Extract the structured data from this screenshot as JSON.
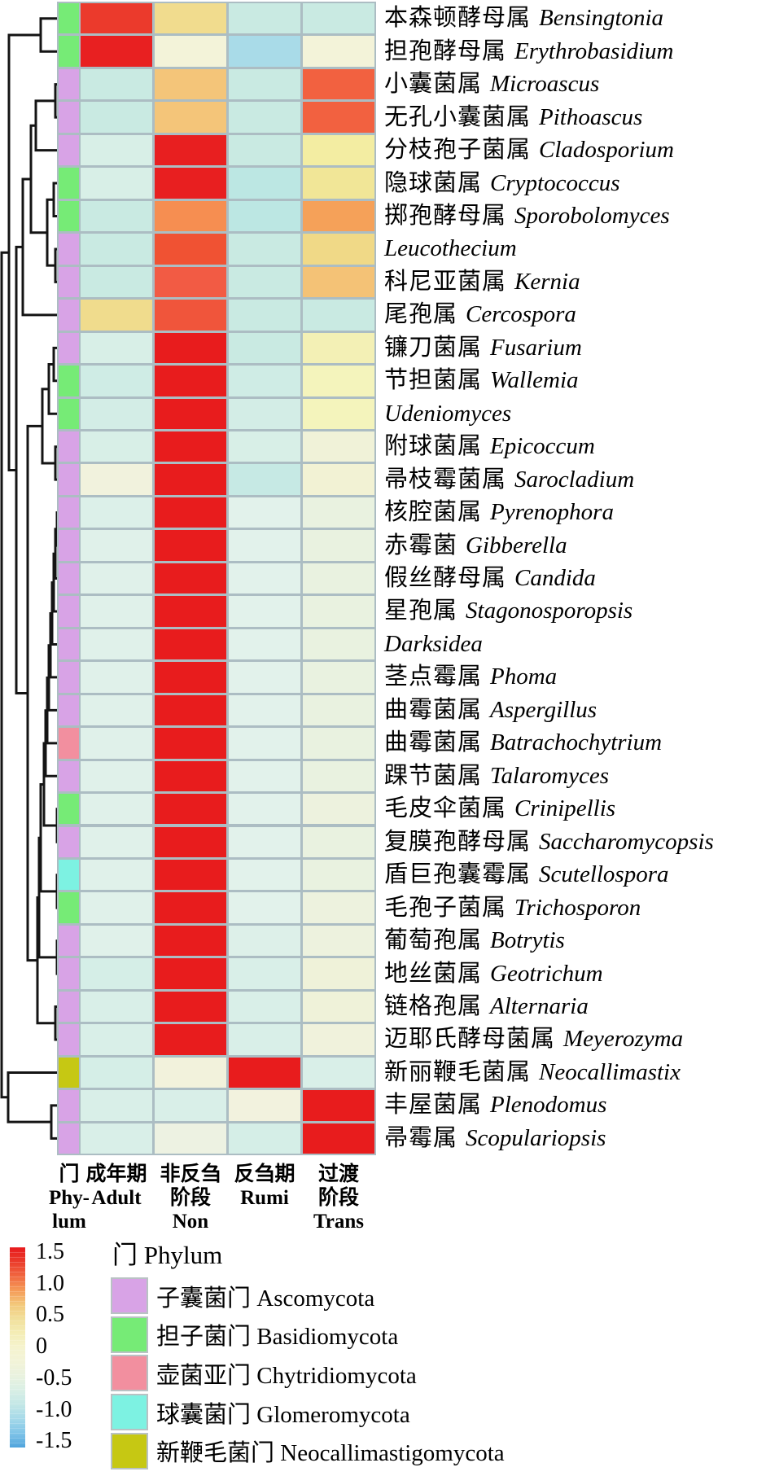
{
  "figure_type": "clustered-heatmap",
  "grid_color": "#ACBDC3",
  "branch_color": "#141414",
  "legend": {
    "title": "门 Phylum",
    "items": [
      "asco",
      "basidio",
      "chytridio",
      "glomero",
      "neocalli"
    ]
  },
  "chart_data": {
    "type": "heatmap",
    "title": "",
    "value_scale": "row z-score",
    "columns": [
      {
        "id": "adult",
        "label_lines": [
          "成年期",
          "Adult"
        ]
      },
      {
        "id": "non",
        "label_lines": [
          "非反刍",
          "阶段",
          "Non"
        ]
      },
      {
        "id": "rumi",
        "label_lines": [
          "反刍期",
          "Rumi"
        ]
      },
      {
        "id": "trans",
        "label_lines": [
          "过渡",
          "阶段",
          "Trans"
        ]
      }
    ],
    "phylum_column": {
      "label_lines": [
        "门",
        "Phy-",
        "lum"
      ]
    },
    "colorbar": {
      "ticks": [
        "1.5",
        "1.0",
        "0.5",
        "0",
        "-0.5",
        "-1.0",
        "-1.5"
      ],
      "range": [
        -1.5,
        1.5
      ],
      "stops": [
        "#E8191C",
        "#EA3B2B",
        "#F0663F",
        "#F59A57",
        "#F3C87B",
        "#F1DF9A",
        "#F4EDB6",
        "#F5F3CE",
        "#F2F3D8",
        "#E9F2DF",
        "#D9EFE5",
        "#C3E7E6",
        "#A5D9E9",
        "#7FC4E8",
        "#4FA3DC"
      ]
    },
    "phyla": {
      "asco": {
        "cn": "子囊菌门",
        "latin": "Ascomycota",
        "color": "#D8A3E6"
      },
      "basidio": {
        "cn": "担子菌门",
        "latin": "Basidiomycota",
        "color": "#76EB76"
      },
      "chytridio": {
        "cn": "壶菌亚门",
        "latin": "Chytridiomycota",
        "color": "#F28F9F"
      },
      "glomero": {
        "cn": "球囊菌门",
        "latin": "Glomeromycota",
        "color": "#7DF2E2"
      },
      "neocalli": {
        "cn": "新鞭毛菌门",
        "latin": "Neocallimastigomycota",
        "color": "#C6C813"
      }
    },
    "rows": [
      {
        "cn": "本森顿酵母属",
        "latin": "Bensingtonia",
        "phylum": "basidio",
        "colors": [
          "#EB3A2C",
          "#F1DC8E",
          "#C9EAE2",
          "#C9EAE2"
        ],
        "values": [
          1.4,
          0.6,
          -0.6,
          -0.6
        ]
      },
      {
        "cn": "担孢酵母属",
        "latin": "Erythrobasidium",
        "phylum": "basidio",
        "colors": [
          "#E82021",
          "#F3F3D9",
          "#A9DBE8",
          "#F3F3D9"
        ],
        "values": [
          1.5,
          0.1,
          -1.0,
          0.1
        ]
      },
      {
        "cn": "小囊菌属",
        "latin": "Microascus",
        "phylum": "asco",
        "colors": [
          "#C9EAE2",
          "#F4C579",
          "#C9EAE2",
          "#F26140"
        ],
        "values": [
          -0.6,
          0.8,
          -0.6,
          1.2
        ]
      },
      {
        "cn": "无孔小囊菌属",
        "latin": "Pithoascus",
        "phylum": "asco",
        "colors": [
          "#C9EAE2",
          "#F4C579",
          "#C9EAE2",
          "#F26140"
        ],
        "values": [
          -0.6,
          0.8,
          -0.6,
          1.2
        ]
      },
      {
        "cn": "分枝孢子菌属",
        "latin": "Cladosporium",
        "phylum": "asco",
        "colors": [
          "#D8EFE7",
          "#E81F20",
          "#C9EAE2",
          "#F3EDA2"
        ],
        "values": [
          -0.4,
          1.5,
          -0.6,
          0.4
        ]
      },
      {
        "cn": "隐球菌属",
        "latin": "Cryptococcus",
        "phylum": "basidio",
        "colors": [
          "#D8EFE7",
          "#E81F20",
          "#BCE7E3",
          "#F1E697"
        ],
        "values": [
          -0.4,
          1.5,
          -0.6,
          0.4
        ]
      },
      {
        "cn": "掷孢酵母属",
        "latin": "Sporobolomyces",
        "phylum": "basidio",
        "colors": [
          "#C9EAE2",
          "#F68E51",
          "#BCE7E3",
          "#F5A159"
        ],
        "values": [
          -0.6,
          1.0,
          -0.6,
          0.9
        ]
      },
      {
        "cn": "",
        "latin": "Leucothecium",
        "phylum": "asco",
        "colors": [
          "#C9EAE2",
          "#F05233",
          "#C9EAE2",
          "#F0D987"
        ],
        "values": [
          -0.6,
          1.2,
          -0.6,
          0.6
        ]
      },
      {
        "cn": "科尼亚菌属",
        "latin": "Kernia",
        "phylum": "asco",
        "colors": [
          "#C9EAE2",
          "#F25B44",
          "#C9EAE2",
          "#F4C276"
        ],
        "values": [
          -0.6,
          1.2,
          -0.6,
          0.8
        ]
      },
      {
        "cn": "尾孢属",
        "latin": "Cercospora",
        "phylum": "asco",
        "colors": [
          "#F0DC8D",
          "#F0553B",
          "#C9EAE2",
          "#C9EAE2"
        ],
        "values": [
          0.6,
          1.2,
          -0.6,
          -0.6
        ]
      },
      {
        "cn": "镰刀菌属",
        "latin": "Fusarium",
        "phylum": "asco",
        "colors": [
          "#D8EFE7",
          "#E81C1D",
          "#C9EAE2",
          "#F3F0B5"
        ],
        "values": [
          -0.4,
          1.5,
          -0.6,
          0.3
        ]
      },
      {
        "cn": "节担菌属",
        "latin": "Wallemia",
        "phylum": "basidio",
        "colors": [
          "#CFECE5",
          "#E81C1D",
          "#CFECE5",
          "#F4F4BC"
        ],
        "values": [
          -0.5,
          1.5,
          -0.5,
          0.3
        ]
      },
      {
        "cn": "",
        "latin": "Udeniomyces",
        "phylum": "basidio",
        "colors": [
          "#D3EDE6",
          "#E81C1D",
          "#D3EDE6",
          "#F4F4BC"
        ],
        "values": [
          -0.5,
          1.5,
          -0.5,
          0.3
        ]
      },
      {
        "cn": "附球菌属",
        "latin": "Epicoccum",
        "phylum": "asco",
        "colors": [
          "#D8EFE7",
          "#E81C1D",
          "#D8EFE7",
          "#F0F2D8"
        ],
        "values": [
          -0.4,
          1.5,
          -0.4,
          0.1
        ]
      },
      {
        "cn": "帚枝霉菌属",
        "latin": "Sarocladium",
        "phylum": "asco",
        "colors": [
          "#F1F2DD",
          "#E81C1D",
          "#C6E9E4",
          "#F2F2D4"
        ],
        "values": [
          0.0,
          1.5,
          -0.6,
          0.1
        ]
      },
      {
        "cn": "核腔菌属",
        "latin": "Pyrenophora",
        "phylum": "asco",
        "colors": [
          "#DCF0E9",
          "#E81C1D",
          "#E2F2EB",
          "#E9F2E0"
        ],
        "values": [
          -0.4,
          1.5,
          -0.3,
          -0.1
        ]
      },
      {
        "cn": "赤霉菌",
        "latin": "Gibberella",
        "phylum": "asco",
        "colors": [
          "#E0F1EA",
          "#E81C1D",
          "#E2F2EB",
          "#E9F2E0"
        ],
        "values": [
          -0.4,
          1.5,
          -0.3,
          -0.1
        ]
      },
      {
        "cn": "假丝酵母属",
        "latin": "Candida",
        "phylum": "asco",
        "colors": [
          "#E0F1EA",
          "#E81C1D",
          "#E2F2EB",
          "#E9F2E0"
        ],
        "values": [
          -0.4,
          1.5,
          -0.3,
          -0.1
        ]
      },
      {
        "cn": "星孢属",
        "latin": "Stagonosporopsis",
        "phylum": "asco",
        "colors": [
          "#E0F1EA",
          "#E81C1D",
          "#E2F2EB",
          "#E9F2E0"
        ],
        "values": [
          -0.4,
          1.5,
          -0.3,
          -0.1
        ]
      },
      {
        "cn": "",
        "latin": "Darksidea",
        "phylum": "asco",
        "colors": [
          "#E0F1EA",
          "#E81C1D",
          "#E2F2EB",
          "#E9F2E0"
        ],
        "values": [
          -0.4,
          1.5,
          -0.3,
          -0.1
        ]
      },
      {
        "cn": "茎点霉属",
        "latin": "Phoma",
        "phylum": "asco",
        "colors": [
          "#E0F1EA",
          "#E81C1D",
          "#E2F2EB",
          "#E9F2E0"
        ],
        "values": [
          -0.4,
          1.5,
          -0.3,
          -0.1
        ]
      },
      {
        "cn": "曲霉菌属",
        "latin": "Aspergillus",
        "phylum": "asco",
        "colors": [
          "#E0F1EA",
          "#E81C1D",
          "#E2F2EB",
          "#E9F2E0"
        ],
        "values": [
          -0.4,
          1.5,
          -0.3,
          -0.1
        ]
      },
      {
        "cn": "曲霉菌属",
        "latin": "Batrachochytrium",
        "phylum": "chytridio",
        "colors": [
          "#E0F1EA",
          "#E81C1D",
          "#E2F2EB",
          "#E9F2E0"
        ],
        "values": [
          -0.4,
          1.5,
          -0.3,
          -0.1
        ]
      },
      {
        "cn": "踝节菌属",
        "latin": "Talaromyces",
        "phylum": "asco",
        "colors": [
          "#E0F1EA",
          "#E81C1D",
          "#E2F2EB",
          "#E9F2E0"
        ],
        "values": [
          -0.4,
          1.5,
          -0.3,
          -0.1
        ]
      },
      {
        "cn": "毛皮伞菌属",
        "latin": "Crinipellis",
        "phylum": "basidio",
        "colors": [
          "#E0F1EA",
          "#E81C1D",
          "#E2F2EB",
          "#EDF2DE"
        ],
        "values": [
          -0.4,
          1.5,
          -0.3,
          -0.1
        ]
      },
      {
        "cn": "复膜孢酵母属",
        "latin": "Saccharomycopsis",
        "phylum": "asco",
        "colors": [
          "#E0F1EA",
          "#E81C1D",
          "#E2F2EB",
          "#E9F2E0"
        ],
        "values": [
          -0.4,
          1.5,
          -0.3,
          -0.1
        ]
      },
      {
        "cn": "盾巨孢囊霉属",
        "latin": "Scutellospora",
        "phylum": "glomero",
        "colors": [
          "#E0F1EA",
          "#E81C1D",
          "#E2F2EB",
          "#E9F2E0"
        ],
        "values": [
          -0.4,
          1.5,
          -0.3,
          -0.1
        ]
      },
      {
        "cn": "毛孢子菌属",
        "latin": "Trichosporon",
        "phylum": "basidio",
        "colors": [
          "#E0F1EA",
          "#E81C1D",
          "#E2F2EB",
          "#EDF2DE"
        ],
        "values": [
          -0.4,
          1.5,
          -0.3,
          -0.1
        ]
      },
      {
        "cn": "葡萄孢属",
        "latin": "Botrytis",
        "phylum": "asco",
        "colors": [
          "#E0F1EA",
          "#E81C1D",
          "#DDF0E9",
          "#EDF2DE"
        ],
        "values": [
          -0.4,
          1.5,
          -0.4,
          -0.1
        ]
      },
      {
        "cn": "地丝菌属",
        "latin": "Geotrichum",
        "phylum": "asco",
        "colors": [
          "#D5EEE7",
          "#E81C1D",
          "#D9EFE8",
          "#EFF2D9"
        ],
        "values": [
          -0.4,
          1.5,
          -0.4,
          -0.1
        ]
      },
      {
        "cn": "链格孢属",
        "latin": "Alternaria",
        "phylum": "asco",
        "colors": [
          "#D9EFE8",
          "#E81C1D",
          "#D9EFE8",
          "#EFF2D9"
        ],
        "values": [
          -0.4,
          1.5,
          -0.4,
          -0.1
        ]
      },
      {
        "cn": "迈耶氏酵母菌属",
        "latin": "Meyerozyma",
        "phylum": "asco",
        "colors": [
          "#D9EFE8",
          "#E81C1D",
          "#D9EFE8",
          "#F0F2DC"
        ],
        "values": [
          -0.4,
          1.5,
          -0.4,
          0.0
        ]
      },
      {
        "cn": "新丽鞭毛菌属",
        "latin": "Neocallimastix",
        "phylum": "neocalli",
        "colors": [
          "#D5EEE7",
          "#F2F2DC",
          "#E81C1D",
          "#D9EFE8"
        ],
        "values": [
          -0.4,
          0.1,
          1.5,
          -0.4
        ]
      },
      {
        "cn": "丰屋菌属",
        "latin": "Plenodomus",
        "phylum": "asco",
        "colors": [
          "#D9EFE8",
          "#D9EFE8",
          "#F2F2DE",
          "#E81C1D"
        ],
        "values": [
          -0.4,
          -0.4,
          0.1,
          1.5
        ]
      },
      {
        "cn": "帚霉属",
        "latin": "Scopulariopsis",
        "phylum": "asco",
        "colors": [
          "#D9EFE8",
          "#EDF2E2",
          "#D5EEE7",
          "#E81C1D"
        ],
        "values": [
          -0.4,
          -0.1,
          -0.4,
          1.5
        ]
      }
    ],
    "dendrogram_merges": [
      [
        "L1",
        "L2",
        50
      ],
      [
        "L3",
        "L4",
        68
      ],
      [
        "N2",
        "L5",
        44
      ],
      [
        "L6",
        "L7",
        66
      ],
      [
        "L8",
        "L9",
        68
      ],
      [
        "N4",
        "N5",
        58
      ],
      [
        "N3",
        "N6",
        38
      ],
      [
        "N7",
        "L10",
        28
      ],
      [
        "L11",
        "L12",
        66
      ],
      [
        "N9",
        "L13",
        60
      ],
      [
        "L14",
        "L15",
        68
      ],
      [
        "N10",
        "N11",
        52
      ],
      [
        "L16",
        "L17",
        70
      ],
      [
        "N13",
        "L18",
        68
      ],
      [
        "N14",
        "L19",
        66
      ],
      [
        "N15",
        "L20",
        64
      ],
      [
        "N16",
        "L21",
        62
      ],
      [
        "N17",
        "L22",
        60
      ],
      [
        "N18",
        "L23",
        58
      ],
      [
        "N19",
        "L24",
        56
      ],
      [
        "L25",
        "L26",
        70
      ],
      [
        "N20",
        "N21",
        54
      ],
      [
        "L27",
        "L28",
        70
      ],
      [
        "N22",
        "N23",
        50
      ],
      [
        "L29",
        "L30",
        70
      ],
      [
        "N24",
        "N25",
        48
      ],
      [
        "L31",
        "L32",
        68
      ],
      [
        "N26",
        "N27",
        46
      ],
      [
        "N12",
        "N28",
        34
      ],
      [
        "N8",
        "N29",
        20
      ],
      [
        "N1",
        "N30",
        11
      ],
      [
        "L34",
        "L35",
        63
      ],
      [
        "L33",
        "N32",
        10
      ],
      [
        "N31",
        "N33",
        2
      ]
    ]
  }
}
